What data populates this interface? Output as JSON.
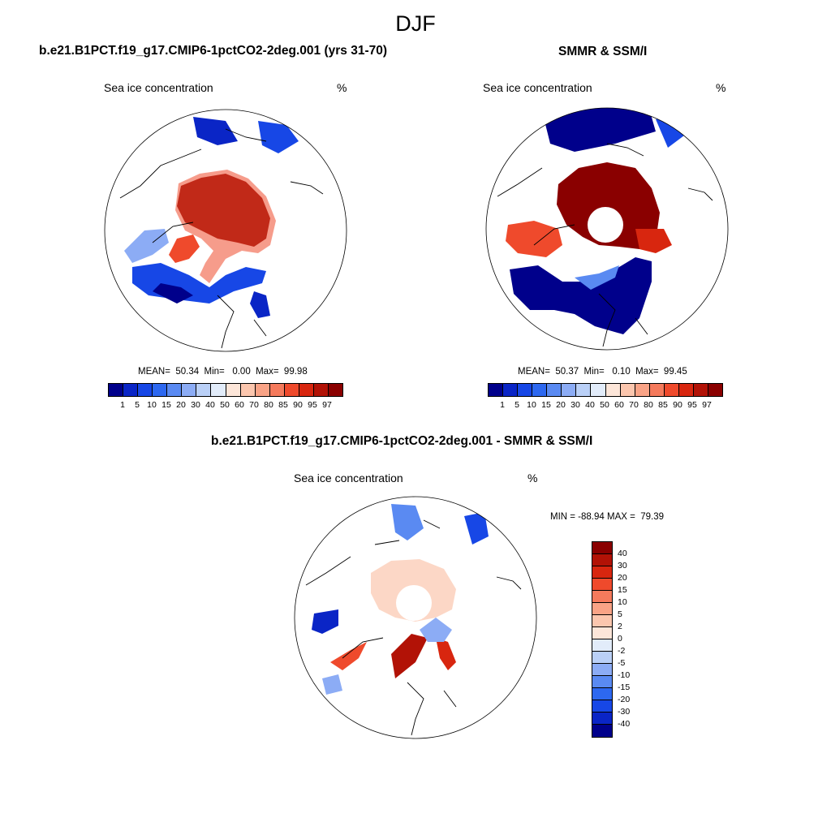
{
  "main_title": "DJF",
  "colors": {
    "seq_palette": [
      "#00008b",
      "#0a25c6",
      "#1747e6",
      "#2d68f0",
      "#5a8af2",
      "#8cacf5",
      "#bad0f7",
      "#e2ecfa",
      "#fde6d9",
      "#fbc6ae",
      "#f9a386",
      "#f57a5c",
      "#ef4a2c",
      "#d8260f",
      "#b21206",
      "#8a0000"
    ],
    "diff_palette": [
      "#8a0000",
      "#b21206",
      "#d8260f",
      "#ef4a2c",
      "#f57a5c",
      "#f9a386",
      "#fbc6ae",
      "#fde6d9",
      "#e2ecfa",
      "#bad0f7",
      "#8cacf5",
      "#5a8af2",
      "#2d68f0",
      "#1747e6",
      "#0a25c6",
      "#00008b"
    ]
  },
  "panel_left": {
    "title": "b.e21.B1PCT.f19_g17.CMIP6-1pctCO2-2deg.001 (yrs 31-70)",
    "var_label": "Sea ice concentration",
    "unit": "%",
    "stats": "MEAN=  50.34  Min=   0.00  Max=  99.98",
    "mean": 50.34,
    "min": 0.0,
    "max": 99.98
  },
  "panel_right": {
    "title": "SMMR & SSM/I",
    "var_label": "Sea ice concentration",
    "unit": "%",
    "stats": "MEAN=  50.37  Min=   0.10  Max=  99.45",
    "mean": 50.37,
    "min": 0.1,
    "max": 99.45
  },
  "panel_diff": {
    "title": "b.e21.B1PCT.f19_g17.CMIP6-1pctCO2-2deg.001 - SMMR & SSM/I",
    "var_label": "Sea ice concentration",
    "unit": "%",
    "stats": "MIN = -88.94 MAX =  79.39",
    "min": -88.94,
    "max": 79.39
  },
  "colorbar_ticks": [
    "1",
    "5",
    "10",
    "15",
    "20",
    "30",
    "40",
    "50",
    "60",
    "70",
    "80",
    "85",
    "90",
    "95",
    "97"
  ],
  "diff_colorbar_ticks": [
    "40",
    "30",
    "20",
    "15",
    "10",
    "5",
    "2",
    "0",
    "-2",
    "-5",
    "-10",
    "-15",
    "-20",
    "-30",
    "-40"
  ]
}
